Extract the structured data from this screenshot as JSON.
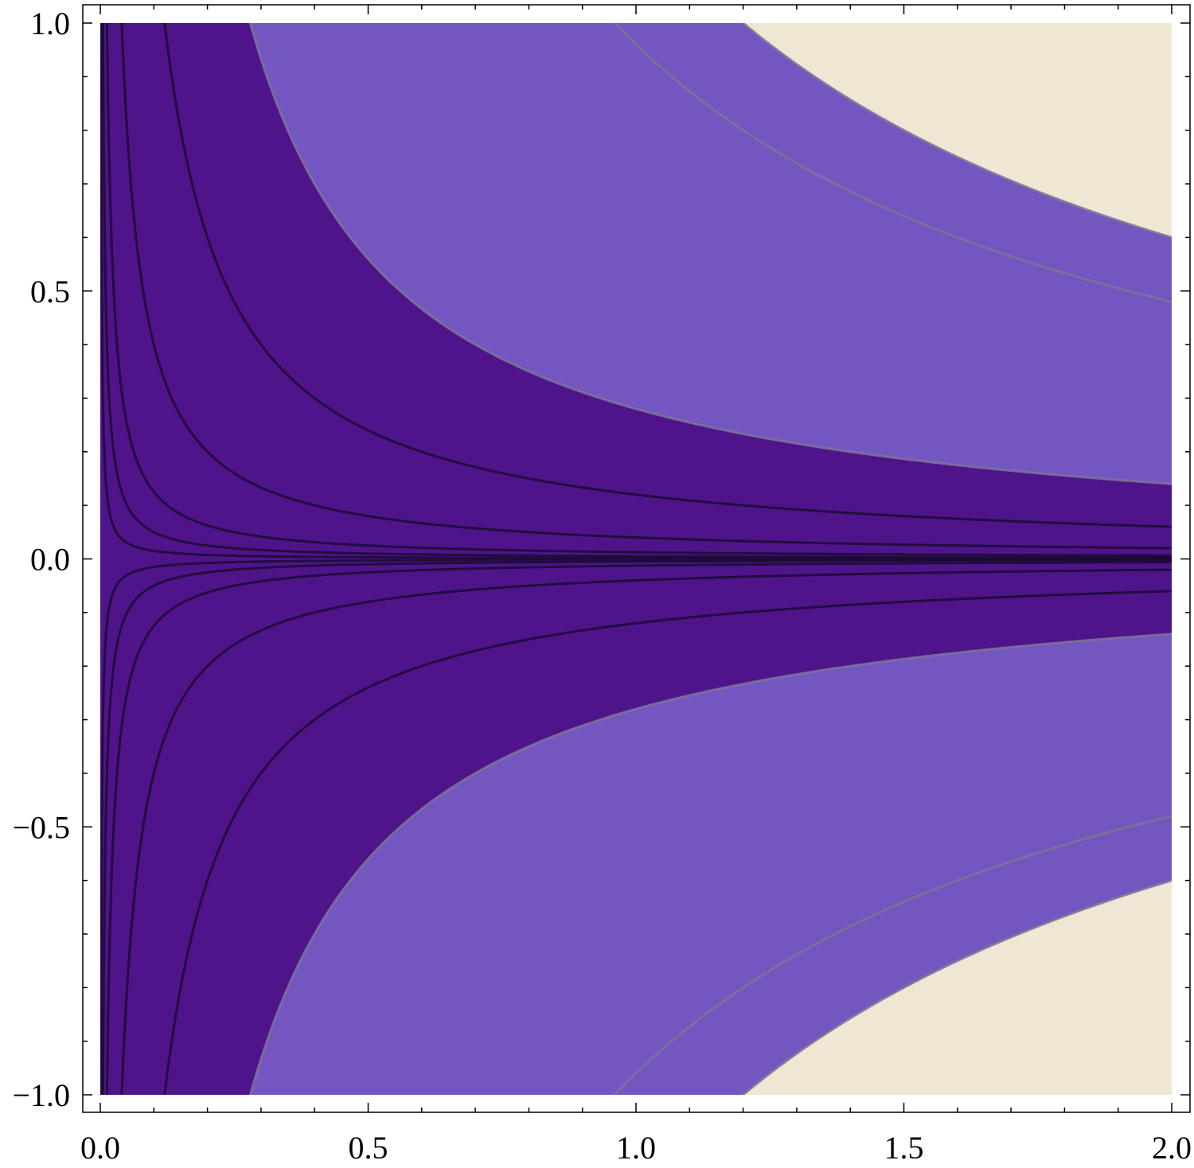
{
  "chart_data": {
    "type": "contour",
    "title": "",
    "xlabel": "",
    "ylabel": "",
    "xlim": [
      0,
      2
    ],
    "ylim": [
      -1,
      1
    ],
    "function": "x*y",
    "grid": false,
    "legend": "none",
    "x_ticks": [
      {
        "value": 0.0,
        "label": "0.0"
      },
      {
        "value": 0.5,
        "label": "0.5"
      },
      {
        "value": 1.0,
        "label": "1.0"
      },
      {
        "value": 1.5,
        "label": "1.5"
      },
      {
        "value": 2.0,
        "label": "2.0"
      }
    ],
    "y_ticks": [
      {
        "value": -1.0,
        "label": "−1.0"
      },
      {
        "value": -0.5,
        "label": "−0.5"
      },
      {
        "value": 0.0,
        "label": "0.0"
      },
      {
        "value": 0.5,
        "label": "0.5"
      },
      {
        "value": 1.0,
        "label": "1.0"
      }
    ],
    "bands": [
      {
        "from": 0,
        "to": 0.28,
        "color": "#4f148a"
      },
      {
        "from": 0.28,
        "to": 1.2,
        "color": "#7456c1"
      },
      {
        "from": 1.2,
        "to": 3,
        "color": "#efe6d4"
      }
    ],
    "contour_levels": [
      0.0015,
      0.005,
      0.0125,
      0.04,
      0.12,
      0.28,
      0.96,
      1.2
    ],
    "contour_styles": {
      "dark": "#1a0b33",
      "light": "#7d7497"
    },
    "dark_level_max": 0.12
  }
}
